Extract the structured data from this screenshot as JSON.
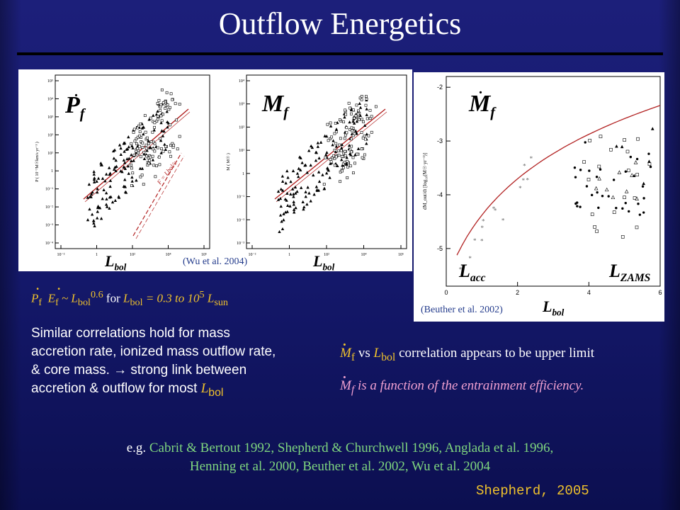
{
  "slide": {
    "title": "Outflow Energetics",
    "credit": "Shepherd, 2005"
  },
  "panel_left": {
    "label_main": "P",
    "label_main_sub": "f",
    "line_label": "F = L",
    "line_label_sub": "bol",
    "line_label_tail": "/c",
    "xlabel": "L",
    "xlabel_sub": "bol",
    "yaxis_text": "P ( 10⁻³M☉km/s yr⁻¹ )"
  },
  "panel_mid": {
    "label_main": "M",
    "label_main_sub": "f",
    "xlabel": "L",
    "xlabel_sub": "bol",
    "yaxis_text": "M ( M☉ )",
    "citation": "(Wu et al. 2004)"
  },
  "panel_right": {
    "label_main": "M",
    "label_main_sub": "f",
    "label_acc": "L",
    "label_acc_sub": "acc",
    "label_zams": "L",
    "label_zams_sub": "ZAMS",
    "xlabel": "L",
    "xlabel_sub": "bol",
    "yaxis_text": "dM_out/dt [log₁₀(M☉ yr⁻¹)]",
    "citation": "(Beuther et al. 2002)"
  },
  "relation": {
    "p": "P",
    "p_sub": "f",
    "e": "E",
    "e_sub": "f",
    "approx": " ~ L",
    "l_sub": "bol",
    "exp": "0.6",
    "for_text": " for ",
    "l2": "L",
    "l2_sub": "bol",
    "range": " = 0.3 to 10",
    "range_exp": "5",
    "lsun": " L",
    "lsun_sub": "sun"
  },
  "body_text": {
    "line1": "Similar correlations hold for mass",
    "line2": "accretion rate, ionized mass outflow rate,",
    "line3": "& core mass.  → strong link between",
    "line4_a": "accretion & outflow for most ",
    "line4_l": "L",
    "line4_sub": "bol"
  },
  "notes": {
    "n1_m": "M",
    "n1_sub": "f",
    "n1_vs": " vs ",
    "n1_l": "L",
    "n1_lsub": "bol",
    "n1_rest": " correlation appears to be upper limit",
    "n2_m": "M",
    "n2_sub": "f",
    "n2_rest": "  is a function of the entrainment efficiency."
  },
  "references": {
    "prefix": "e.g. ",
    "line1": "Cabrit & Bertout 1992, Shepherd & Churchwell 1996, Anglada et al. 1996,",
    "line2": "Henning et al. 2000, Beuther et al. 2002, Wu et al. 2004"
  },
  "chart_data": [
    {
      "type": "scatter",
      "title": "",
      "xlabel": "L bol",
      "ylabel": "P ( 10^-3 Msun km/s yr^-1 )",
      "x_ticks": [
        "10⁻²",
        "1",
        "10²",
        "10⁴",
        "10⁶"
      ],
      "y_ticks": [
        "10⁻⁴",
        "10⁻³",
        "10⁻²",
        "10⁻¹",
        "1",
        "10¹",
        "10²",
        "10³",
        "10⁴",
        "10⁵"
      ],
      "log_x": true,
      "log_y": true,
      "fit_lines": [
        "solid",
        "dashed F = Lbol/c"
      ]
    },
    {
      "type": "scatter",
      "title": "",
      "xlabel": "L bol",
      "ylabel": "M ( Msun )",
      "x_ticks": [
        "10⁻²",
        "1",
        "10²",
        "10⁴",
        "10⁶"
      ],
      "y_ticks": [
        "10⁻³",
        "10⁻²",
        "10⁻¹",
        "1",
        "10¹",
        "10²",
        "10³",
        "10⁴"
      ],
      "log_x": true,
      "log_y": true
    },
    {
      "type": "scatter",
      "title": "",
      "xlabel": "L bol",
      "ylabel": "dM_out/dt [log10(Msun yr^-1)]",
      "x_ticks": [
        "0",
        "2",
        "4",
        "6"
      ],
      "y_ticks": [
        "-2",
        "-3",
        "-4",
        "-5"
      ],
      "xlim": [
        0,
        6
      ],
      "ylim": [
        -5.7,
        -1.8
      ]
    }
  ]
}
